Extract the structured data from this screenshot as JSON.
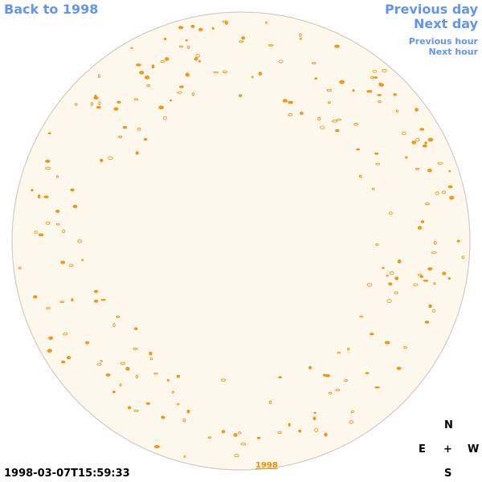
{
  "nav": {
    "back": "Back to 1998",
    "previous_day": "Previous day",
    "next_day": "Next day",
    "previous_hour": "Previous hour",
    "next_hour": "Next hour"
  },
  "timestamp": "1998-03-07T15:59:33",
  "disk_label": "1998",
  "compass": {
    "north": "N",
    "east": "E",
    "center": "+",
    "west": "W",
    "south": "S"
  }
}
